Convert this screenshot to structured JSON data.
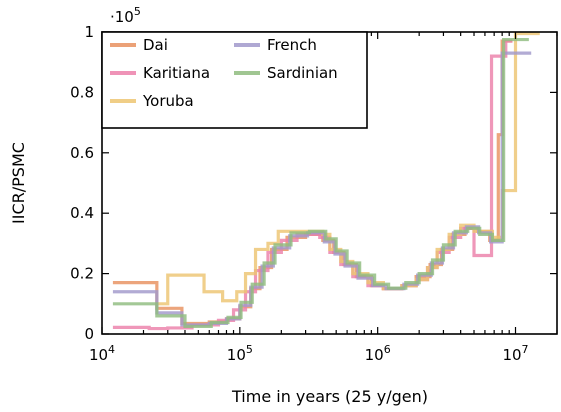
{
  "chart_data": {
    "type": "line",
    "step": true,
    "xlabel": "Time in years (25 y/gen)",
    "ylabel": "IICR/PSMC",
    "x_scale": "log",
    "xlim": [
      10000,
      20000000
    ],
    "ylim": [
      0,
      100000
    ],
    "y_scale_label": "·10",
    "y_scale_exponent": "5",
    "x_ticks": [
      {
        "value": 10000,
        "base": "10",
        "exp": "4"
      },
      {
        "value": 100000,
        "base": "10",
        "exp": "5"
      },
      {
        "value": 1000000,
        "base": "10",
        "exp": "6"
      },
      {
        "value": 10000000,
        "base": "10",
        "exp": "7"
      }
    ],
    "y_ticks": [
      {
        "value": 0,
        "label": "0"
      },
      {
        "value": 20000,
        "label": "0.2"
      },
      {
        "value": 40000,
        "label": "0.4"
      },
      {
        "value": 60000,
        "label": "0.6"
      },
      {
        "value": 80000,
        "label": "0.8"
      },
      {
        "value": 100000,
        "label": "1"
      }
    ],
    "grid": false,
    "legend_position": "top-left",
    "series": [
      {
        "name": "Dai",
        "color": "#e8915f",
        "points": [
          [
            12000,
            17000
          ],
          [
            25000,
            17000
          ],
          [
            25000,
            8500
          ],
          [
            38000,
            8500
          ],
          [
            38000,
            3500
          ],
          [
            60000,
            3500
          ],
          [
            60000,
            4000
          ],
          [
            80000,
            4000
          ],
          [
            80000,
            5000
          ],
          [
            100000,
            5000
          ],
          [
            100000,
            9000
          ],
          [
            120000,
            9000
          ],
          [
            120000,
            15000
          ],
          [
            140000,
            15000
          ],
          [
            140000,
            22000
          ],
          [
            170000,
            22000
          ],
          [
            170000,
            28000
          ],
          [
            220000,
            28000
          ],
          [
            220000,
            32000
          ],
          [
            300000,
            32000
          ],
          [
            300000,
            33000
          ],
          [
            400000,
            33000
          ],
          [
            400000,
            31000
          ],
          [
            480000,
            31000
          ],
          [
            480000,
            27000
          ],
          [
            570000,
            27000
          ],
          [
            570000,
            23000
          ],
          [
            700000,
            23000
          ],
          [
            700000,
            19000
          ],
          [
            900000,
            19000
          ],
          [
            900000,
            16000
          ],
          [
            1100000,
            16000
          ],
          [
            1100000,
            15000
          ],
          [
            1500000,
            15000
          ],
          [
            1500000,
            16000
          ],
          [
            1900000,
            16000
          ],
          [
            1900000,
            19000
          ],
          [
            2400000,
            19000
          ],
          [
            2400000,
            23000
          ],
          [
            2900000,
            23000
          ],
          [
            2900000,
            28000
          ],
          [
            3500000,
            28000
          ],
          [
            3500000,
            33000
          ],
          [
            4300000,
            33000
          ],
          [
            4300000,
            35000
          ],
          [
            5300000,
            35000
          ],
          [
            5300000,
            34000
          ],
          [
            6500000,
            34000
          ],
          [
            6500000,
            31000
          ],
          [
            7500000,
            31000
          ],
          [
            7500000,
            66000
          ],
          [
            8000000,
            66000
          ],
          [
            8000000,
            97000
          ],
          [
            9500000,
            97000
          ]
        ]
      },
      {
        "name": "Karitiana",
        "color": "#ec80aa",
        "points": [
          [
            12000,
            2200
          ],
          [
            22000,
            2200
          ],
          [
            22000,
            1800
          ],
          [
            30000,
            1800
          ],
          [
            30000,
            2000
          ],
          [
            45000,
            2000
          ],
          [
            45000,
            3000
          ],
          [
            70000,
            3000
          ],
          [
            70000,
            4500
          ],
          [
            90000,
            4500
          ],
          [
            90000,
            8000
          ],
          [
            110000,
            8000
          ],
          [
            110000,
            14000
          ],
          [
            130000,
            14000
          ],
          [
            130000,
            21000
          ],
          [
            160000,
            21000
          ],
          [
            160000,
            27000
          ],
          [
            200000,
            27000
          ],
          [
            200000,
            31000
          ],
          [
            260000,
            31000
          ],
          [
            260000,
            33000
          ],
          [
            380000,
            33000
          ],
          [
            380000,
            32000
          ],
          [
            450000,
            32000
          ],
          [
            450000,
            27000
          ],
          [
            540000,
            27000
          ],
          [
            540000,
            23000
          ],
          [
            660000,
            23000
          ],
          [
            660000,
            19000
          ],
          [
            850000,
            19000
          ],
          [
            850000,
            16000
          ],
          [
            1100000,
            16000
          ],
          [
            1100000,
            15000
          ],
          [
            1500000,
            15000
          ],
          [
            1500000,
            16000
          ],
          [
            1900000,
            16000
          ],
          [
            1900000,
            18000
          ],
          [
            2300000,
            18000
          ],
          [
            2300000,
            22000
          ],
          [
            2700000,
            22000
          ],
          [
            2700000,
            27000
          ],
          [
            3300000,
            27000
          ],
          [
            3300000,
            32000
          ],
          [
            4000000,
            32000
          ],
          [
            4000000,
            35000
          ],
          [
            5000000,
            35000
          ],
          [
            5000000,
            26000
          ],
          [
            6700000,
            26000
          ],
          [
            6700000,
            92000
          ],
          [
            8500000,
            92000
          ],
          [
            8500000,
            97000
          ],
          [
            9500000,
            97000
          ]
        ]
      },
      {
        "name": "Yoruba",
        "color": "#edc572",
        "points": [
          [
            25000,
            10000
          ],
          [
            30000,
            10000
          ],
          [
            30000,
            19500
          ],
          [
            55000,
            19500
          ],
          [
            55000,
            14000
          ],
          [
            75000,
            14000
          ],
          [
            75000,
            11000
          ],
          [
            95000,
            11000
          ],
          [
            95000,
            14000
          ],
          [
            110000,
            14000
          ],
          [
            110000,
            20000
          ],
          [
            130000,
            20000
          ],
          [
            130000,
            28000
          ],
          [
            160000,
            28000
          ],
          [
            160000,
            30000
          ],
          [
            190000,
            30000
          ],
          [
            190000,
            34000
          ],
          [
            400000,
            34000
          ],
          [
            400000,
            33000
          ],
          [
            450000,
            33000
          ],
          [
            450000,
            28000
          ],
          [
            540000,
            28000
          ],
          [
            540000,
            24000
          ],
          [
            660000,
            24000
          ],
          [
            660000,
            20000
          ],
          [
            850000,
            20000
          ],
          [
            850000,
            17000
          ],
          [
            1100000,
            17000
          ],
          [
            1100000,
            15000
          ],
          [
            1500000,
            15000
          ],
          [
            1500000,
            16000
          ],
          [
            1900000,
            16000
          ],
          [
            1900000,
            18000
          ],
          [
            2300000,
            18000
          ],
          [
            2300000,
            22000
          ],
          [
            2700000,
            22000
          ],
          [
            2700000,
            28000
          ],
          [
            3300000,
            28000
          ],
          [
            3300000,
            33000
          ],
          [
            4000000,
            33000
          ],
          [
            4000000,
            36000
          ],
          [
            5000000,
            36000
          ],
          [
            5000000,
            34000
          ],
          [
            6800000,
            34000
          ],
          [
            6800000,
            32000
          ],
          [
            8000000,
            32000
          ],
          [
            8000000,
            47500
          ],
          [
            10000000,
            47500
          ],
          [
            10000000,
            99500
          ],
          [
            15000000,
            99500
          ]
        ]
      },
      {
        "name": "French",
        "color": "#a199cb",
        "points": [
          [
            12000,
            14000
          ],
          [
            25000,
            14000
          ],
          [
            25000,
            7000
          ],
          [
            38000,
            7000
          ],
          [
            38000,
            3000
          ],
          [
            60000,
            3000
          ],
          [
            60000,
            3500
          ],
          [
            80000,
            3500
          ],
          [
            80000,
            5000
          ],
          [
            100000,
            5000
          ],
          [
            100000,
            9500
          ],
          [
            120000,
            9500
          ],
          [
            120000,
            15500
          ],
          [
            145000,
            15500
          ],
          [
            145000,
            22500
          ],
          [
            175000,
            22500
          ],
          [
            175000,
            28500
          ],
          [
            230000,
            28500
          ],
          [
            230000,
            32500
          ],
          [
            310000,
            32500
          ],
          [
            310000,
            33500
          ],
          [
            410000,
            33500
          ],
          [
            410000,
            30500
          ],
          [
            490000,
            30500
          ],
          [
            490000,
            26500
          ],
          [
            580000,
            26500
          ],
          [
            580000,
            22500
          ],
          [
            720000,
            22500
          ],
          [
            720000,
            18500
          ],
          [
            920000,
            18500
          ],
          [
            920000,
            16000
          ],
          [
            1150000,
            16000
          ],
          [
            1150000,
            15000
          ],
          [
            1550000,
            15000
          ],
          [
            1550000,
            16500
          ],
          [
            1950000,
            16500
          ],
          [
            1950000,
            19500
          ],
          [
            2450000,
            19500
          ],
          [
            2450000,
            23500
          ],
          [
            2950000,
            23500
          ],
          [
            2950000,
            28500
          ],
          [
            3550000,
            28500
          ],
          [
            3550000,
            33500
          ],
          [
            4400000,
            33500
          ],
          [
            4400000,
            35500
          ],
          [
            5400000,
            35500
          ],
          [
            5400000,
            33500
          ],
          [
            6600000,
            33500
          ],
          [
            6600000,
            30500
          ],
          [
            8000000,
            30500
          ],
          [
            8000000,
            93000
          ],
          [
            13000000,
            93000
          ]
        ]
      },
      {
        "name": "Sardinian",
        "color": "#8fbc7f",
        "points": [
          [
            12000,
            10000
          ],
          [
            25000,
            10000
          ],
          [
            25000,
            6000
          ],
          [
            40000,
            6000
          ],
          [
            40000,
            2500
          ],
          [
            62000,
            2500
          ],
          [
            62000,
            3800
          ],
          [
            82000,
            3800
          ],
          [
            82000,
            5500
          ],
          [
            102000,
            5500
          ],
          [
            102000,
            10500
          ],
          [
            123000,
            10500
          ],
          [
            123000,
            16500
          ],
          [
            150000,
            16500
          ],
          [
            150000,
            23500
          ],
          [
            180000,
            23500
          ],
          [
            180000,
            29500
          ],
          [
            235000,
            29500
          ],
          [
            235000,
            33500
          ],
          [
            320000,
            33500
          ],
          [
            320000,
            34000
          ],
          [
            420000,
            34000
          ],
          [
            420000,
            31500
          ],
          [
            500000,
            31500
          ],
          [
            500000,
            27500
          ],
          [
            600000,
            27500
          ],
          [
            600000,
            23500
          ],
          [
            740000,
            23500
          ],
          [
            740000,
            19500
          ],
          [
            950000,
            19500
          ],
          [
            950000,
            16500
          ],
          [
            1200000,
            16500
          ],
          [
            1200000,
            15200
          ],
          [
            1600000,
            15200
          ],
          [
            1600000,
            17000
          ],
          [
            2000000,
            17000
          ],
          [
            2000000,
            20000
          ],
          [
            2500000,
            20000
          ],
          [
            2500000,
            24500
          ],
          [
            3000000,
            24500
          ],
          [
            3000000,
            29500
          ],
          [
            3650000,
            29500
          ],
          [
            3650000,
            34000
          ],
          [
            4500000,
            34000
          ],
          [
            4500000,
            35000
          ],
          [
            5500000,
            35000
          ],
          [
            5500000,
            33000
          ],
          [
            6800000,
            33000
          ],
          [
            6800000,
            31000
          ],
          [
            8200000,
            31000
          ],
          [
            8200000,
            97500
          ],
          [
            12500000,
            97500
          ]
        ]
      }
    ]
  }
}
